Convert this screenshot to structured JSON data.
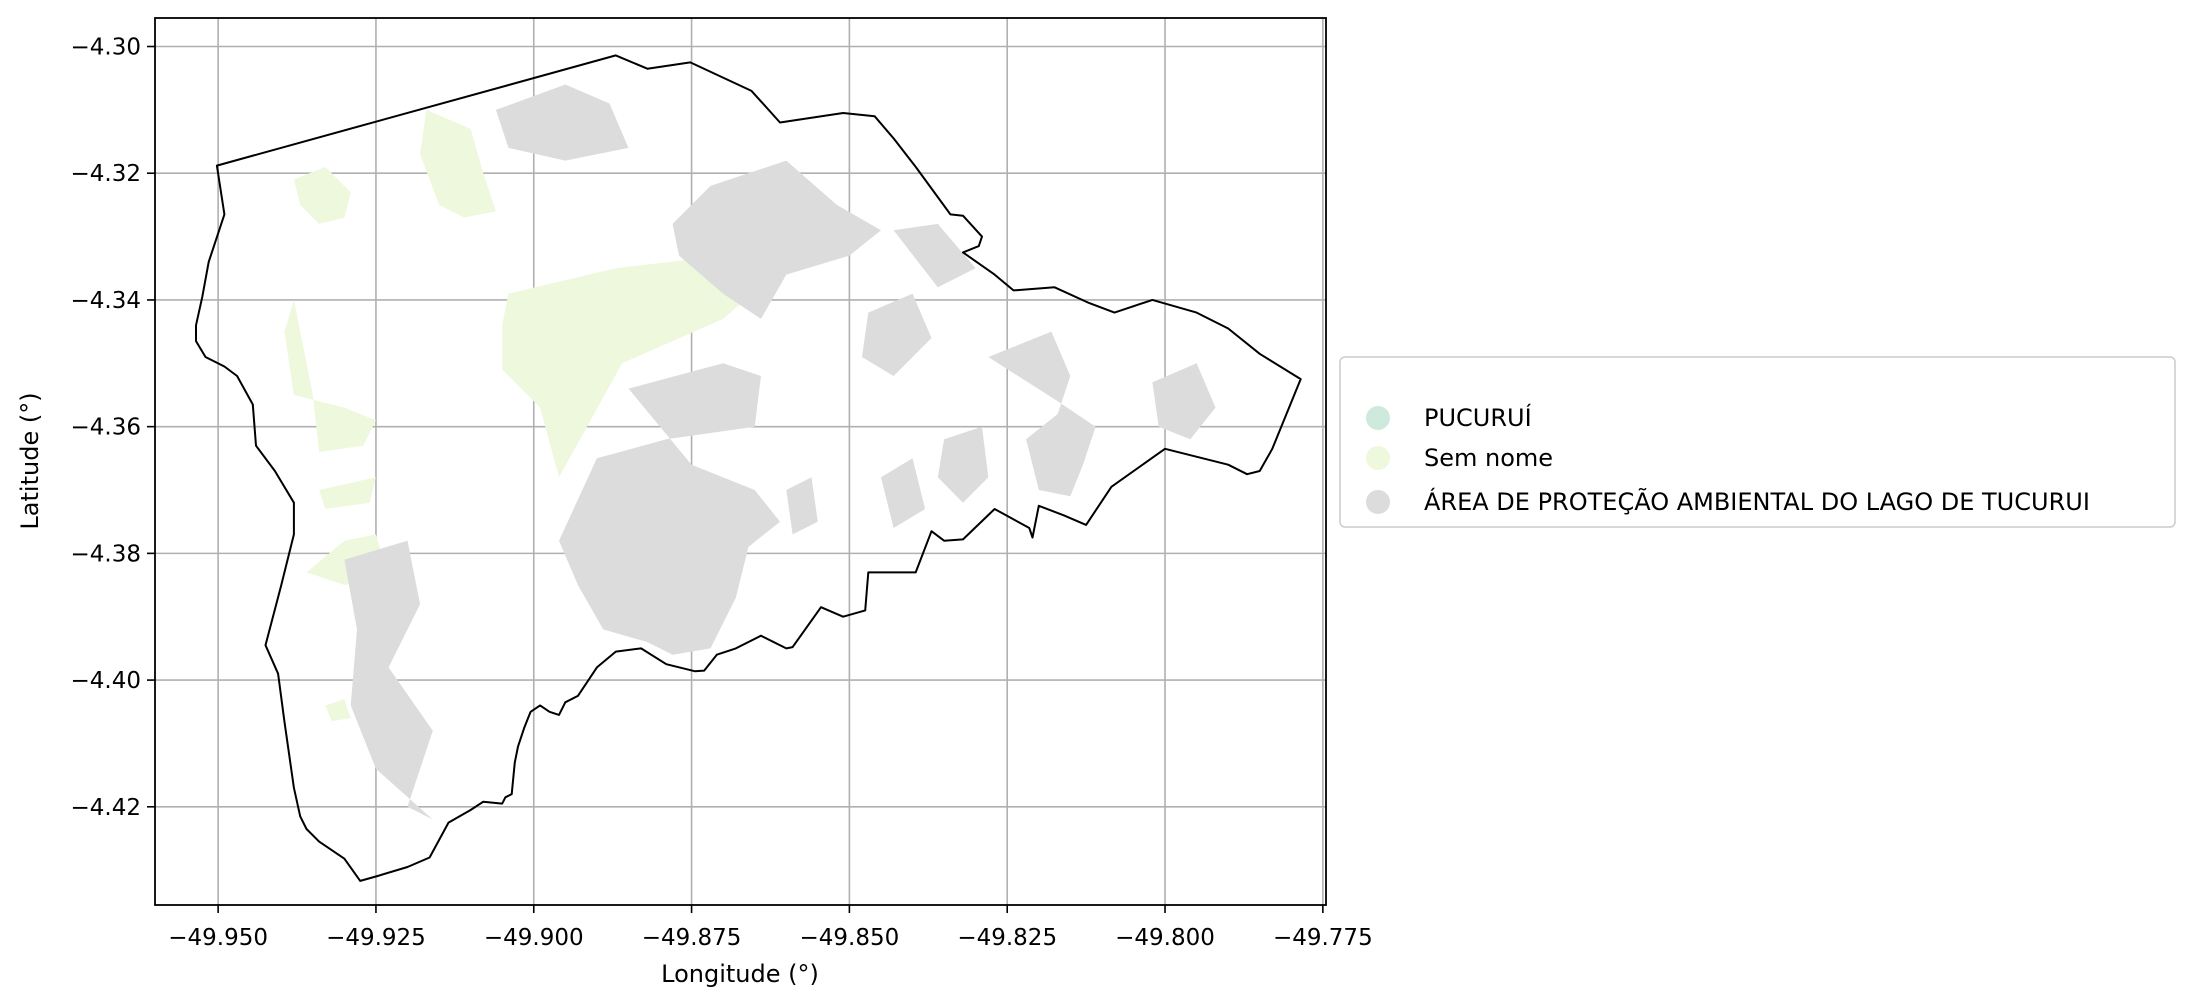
{
  "map": {
    "xlabel": "Longitude (°)",
    "ylabel": "Latitude (°)",
    "xlim": [
      -49.96,
      -49.7745
    ],
    "ylim": [
      -4.4355,
      -4.2955
    ],
    "x_ticks": [
      -49.95,
      -49.925,
      -49.9,
      -49.875,
      -49.85,
      -49.825,
      -49.8,
      -49.775
    ],
    "y_ticks": [
      -4.3,
      -4.32,
      -4.34,
      -4.36,
      -4.38,
      -4.4,
      -4.42
    ],
    "x_tick_labels": [
      "−49.950",
      "−49.925",
      "−49.900",
      "−49.875",
      "−49.850",
      "−49.825",
      "−49.800",
      "−49.775"
    ],
    "y_tick_labels": [
      "−4.30",
      "−4.32",
      "−4.34",
      "−4.36",
      "−4.38",
      "−4.40",
      "−4.42"
    ],
    "grid": true,
    "legend_position": "center-right outside",
    "colors": {
      "pucurui": "#cdeadd",
      "sem_nome": "#eef8dd",
      "apa": "#dcdcdc",
      "boundary": "#000000",
      "grid": "#b0b0b0"
    },
    "legend": [
      {
        "label": "PUCURUÍ",
        "color": "#cdeadd"
      },
      {
        "label": "Sem nome",
        "color": "#eef8dd"
      },
      {
        "label": "ÁREA DE PROTEÇÃO AMBIENTAL DO LAGO DE TUCURUI",
        "color": "#dcdcdc"
      }
    ],
    "boundary": [
      [
        -49.9502,
        -4.3188
      ],
      [
        -49.887,
        -4.3014
      ],
      [
        -49.882,
        -4.3035
      ],
      [
        -49.8752,
        -4.3025
      ],
      [
        -49.8655,
        -4.307
      ],
      [
        -49.861,
        -4.312
      ],
      [
        -49.851,
        -4.3105
      ],
      [
        -49.846,
        -4.311
      ],
      [
        -49.843,
        -4.3145
      ],
      [
        -49.8395,
        -4.319
      ],
      [
        -49.834,
        -4.3265
      ],
      [
        -49.832,
        -4.3267
      ],
      [
        -49.829,
        -4.33
      ],
      [
        -49.8295,
        -4.3315
      ],
      [
        -49.832,
        -4.3325
      ],
      [
        -49.827,
        -4.336
      ],
      [
        -49.824,
        -4.3385
      ],
      [
        -49.8175,
        -4.338
      ],
      [
        -49.812,
        -4.3405
      ],
      [
        -49.808,
        -4.342
      ],
      [
        -49.802,
        -4.34
      ],
      [
        -49.795,
        -4.342
      ],
      [
        -49.79,
        -4.3445
      ],
      [
        -49.785,
        -4.3485
      ],
      [
        -49.7785,
        -4.3525
      ],
      [
        -49.783,
        -4.3635
      ],
      [
        -49.785,
        -4.367
      ],
      [
        -49.787,
        -4.3675
      ],
      [
        -49.79,
        -4.366
      ],
      [
        -49.8,
        -4.3635
      ],
      [
        -49.8085,
        -4.3695
      ],
      [
        -49.8125,
        -4.3755
      ],
      [
        -49.816,
        -4.374
      ],
      [
        -49.82,
        -4.3725
      ],
      [
        -49.821,
        -4.3775
      ],
      [
        -49.8215,
        -4.376
      ],
      [
        -49.827,
        -4.373
      ],
      [
        -49.832,
        -4.3778
      ],
      [
        -49.835,
        -4.378
      ],
      [
        -49.837,
        -4.3765
      ],
      [
        -49.8395,
        -4.383
      ],
      [
        -49.847,
        -4.383
      ],
      [
        -49.8475,
        -4.389
      ],
      [
        -49.851,
        -4.39
      ],
      [
        -49.8545,
        -4.3885
      ],
      [
        -49.859,
        -4.3948
      ],
      [
        -49.86,
        -4.395
      ],
      [
        -49.864,
        -4.393
      ],
      [
        -49.868,
        -4.395
      ],
      [
        -49.871,
        -4.396
      ],
      [
        -49.873,
        -4.3985
      ],
      [
        -49.8745,
        -4.3986
      ],
      [
        -49.879,
        -4.3975
      ],
      [
        -49.883,
        -4.395
      ],
      [
        -49.887,
        -4.3955
      ],
      [
        -49.89,
        -4.398
      ],
      [
        -49.893,
        -4.4025
      ],
      [
        -49.895,
        -4.4035
      ],
      [
        -49.896,
        -4.4055
      ],
      [
        -49.8975,
        -4.405
      ],
      [
        -49.899,
        -4.404
      ],
      [
        -49.9005,
        -4.405
      ],
      [
        -49.9015,
        -4.4075
      ],
      [
        -49.9025,
        -4.4105
      ],
      [
        -49.903,
        -4.413
      ],
      [
        -49.9035,
        -4.418
      ],
      [
        -49.9045,
        -4.4185
      ],
      [
        -49.905,
        -4.4195
      ],
      [
        -49.908,
        -4.4192
      ],
      [
        -49.91,
        -4.4205
      ],
      [
        -49.9135,
        -4.4225
      ],
      [
        -49.9165,
        -4.428
      ],
      [
        -49.92,
        -4.4295
      ],
      [
        -49.925,
        -4.431
      ],
      [
        -49.9275,
        -4.4317
      ],
      [
        -49.93,
        -4.4282
      ],
      [
        -49.934,
        -4.4255
      ],
      [
        -49.936,
        -4.4235
      ],
      [
        -49.937,
        -4.4215
      ],
      [
        -49.938,
        -4.417
      ],
      [
        -49.9395,
        -4.4065
      ],
      [
        -49.9405,
        -4.399
      ],
      [
        -49.9425,
        -4.3945
      ],
      [
        -49.94,
        -4.385
      ],
      [
        -49.938,
        -4.377
      ],
      [
        -49.938,
        -4.372
      ],
      [
        -49.941,
        -4.367
      ],
      [
        -49.944,
        -4.363
      ],
      [
        -49.9445,
        -4.3565
      ],
      [
        -49.947,
        -4.352
      ],
      [
        -49.949,
        -4.3505
      ],
      [
        -49.952,
        -4.349
      ],
      [
        -49.9535,
        -4.3465
      ],
      [
        -49.9535,
        -4.344
      ],
      [
        -49.9525,
        -4.3395
      ],
      [
        -49.9515,
        -4.334
      ],
      [
        -49.949,
        -4.3265
      ],
      [
        -49.9502,
        -4.3188
      ]
    ],
    "sem_nome_areas": [
      [
        [
          -49.917,
          -4.31
        ],
        [
          -49.91,
          -4.313
        ],
        [
          -49.908,
          -4.32
        ],
        [
          -49.906,
          -4.326
        ],
        [
          -49.911,
          -4.327
        ],
        [
          -49.915,
          -4.325
        ],
        [
          -49.918,
          -4.317
        ]
      ],
      [
        [
          -49.938,
          -4.321
        ],
        [
          -49.933,
          -4.319
        ],
        [
          -49.929,
          -4.323
        ],
        [
          -49.93,
          -4.327
        ],
        [
          -49.934,
          -4.328
        ],
        [
          -49.937,
          -4.325
        ]
      ],
      [
        [
          -49.904,
          -4.339
        ],
        [
          -49.887,
          -4.335
        ],
        [
          -49.87,
          -4.333
        ],
        [
          -49.863,
          -4.337
        ],
        [
          -49.87,
          -4.343
        ],
        [
          -49.886,
          -4.35
        ],
        [
          -49.896,
          -4.368
        ],
        [
          -49.899,
          -4.357
        ],
        [
          -49.905,
          -4.351
        ],
        [
          -49.905,
          -4.344
        ]
      ],
      [
        [
          -49.938,
          -4.34
        ],
        [
          -49.935,
          -4.355
        ],
        [
          -49.934,
          -4.364
        ],
        [
          -49.927,
          -4.363
        ],
        [
          -49.925,
          -4.359
        ],
        [
          -49.93,
          -4.357
        ],
        [
          -49.938,
          -4.355
        ],
        [
          -49.9395,
          -4.345
        ]
      ],
      [
        [
          -49.934,
          -4.37
        ],
        [
          -49.925,
          -4.368
        ],
        [
          -49.926,
          -4.372
        ],
        [
          -49.933,
          -4.373
        ]
      ],
      [
        [
          -49.936,
          -4.383
        ],
        [
          -49.93,
          -4.378
        ],
        [
          -49.925,
          -4.377
        ],
        [
          -49.923,
          -4.384
        ],
        [
          -49.93,
          -4.385
        ]
      ],
      [
        [
          -49.933,
          -4.404
        ],
        [
          -49.93,
          -4.403
        ],
        [
          -49.929,
          -4.406
        ],
        [
          -49.932,
          -4.4065
        ]
      ]
    ],
    "apa_areas": [
      [
        [
          -49.906,
          -4.31
        ],
        [
          -49.895,
          -4.306
        ],
        [
          -49.888,
          -4.309
        ],
        [
          -49.885,
          -4.316
        ],
        [
          -49.895,
          -4.318
        ],
        [
          -49.904,
          -4.316
        ]
      ],
      [
        [
          -49.872,
          -4.322
        ],
        [
          -49.86,
          -4.318
        ],
        [
          -49.852,
          -4.325
        ],
        [
          -49.845,
          -4.329
        ],
        [
          -49.85,
          -4.333
        ],
        [
          -49.86,
          -4.336
        ],
        [
          -49.864,
          -4.343
        ],
        [
          -49.87,
          -4.339
        ],
        [
          -49.877,
          -4.333
        ],
        [
          -49.878,
          -4.328
        ]
      ],
      [
        [
          -49.87,
          -4.35
        ],
        [
          -49.864,
          -4.352
        ],
        [
          -49.865,
          -4.36
        ],
        [
          -49.879,
          -4.362
        ],
        [
          -49.89,
          -4.365
        ],
        [
          -49.896,
          -4.378
        ],
        [
          -49.893,
          -4.385
        ],
        [
          -49.889,
          -4.392
        ],
        [
          -49.882,
          -4.394
        ],
        [
          -49.878,
          -4.396
        ],
        [
          -49.872,
          -4.395
        ],
        [
          -49.868,
          -4.387
        ],
        [
          -49.866,
          -4.379
        ],
        [
          -49.861,
          -4.375
        ],
        [
          -49.865,
          -4.37
        ],
        [
          -49.875,
          -4.366
        ],
        [
          -49.885,
          -4.354
        ]
      ],
      [
        [
          -49.847,
          -4.342
        ],
        [
          -49.84,
          -4.339
        ],
        [
          -49.837,
          -4.346
        ],
        [
          -49.843,
          -4.352
        ],
        [
          -49.848,
          -4.349
        ]
      ],
      [
        [
          -49.828,
          -4.349
        ],
        [
          -49.818,
          -4.345
        ],
        [
          -49.815,
          -4.352
        ],
        [
          -49.817,
          -4.358
        ],
        [
          -49.822,
          -4.362
        ],
        [
          -49.82,
          -4.37
        ],
        [
          -49.815,
          -4.371
        ],
        [
          -49.813,
          -4.366
        ],
        [
          -49.811,
          -4.36
        ],
        [
          -49.817,
          -4.356
        ]
      ],
      [
        [
          -49.802,
          -4.353
        ],
        [
          -49.795,
          -4.35
        ],
        [
          -49.792,
          -4.357
        ],
        [
          -49.796,
          -4.362
        ],
        [
          -49.801,
          -4.36
        ]
      ],
      [
        [
          -49.835,
          -4.362
        ],
        [
          -49.829,
          -4.36
        ],
        [
          -49.828,
          -4.368
        ],
        [
          -49.832,
          -4.372
        ],
        [
          -49.836,
          -4.368
        ]
      ],
      [
        [
          -49.845,
          -4.368
        ],
        [
          -49.84,
          -4.365
        ],
        [
          -49.838,
          -4.373
        ],
        [
          -49.843,
          -4.376
        ]
      ],
      [
        [
          -49.86,
          -4.37
        ],
        [
          -49.856,
          -4.368
        ],
        [
          -49.855,
          -4.375
        ],
        [
          -49.859,
          -4.377
        ]
      ],
      [
        [
          -49.93,
          -4.381
        ],
        [
          -49.92,
          -4.378
        ],
        [
          -49.918,
          -4.388
        ],
        [
          -49.923,
          -4.398
        ],
        [
          -49.916,
          -4.408
        ],
        [
          -49.92,
          -4.42
        ],
        [
          -49.916,
          -4.422
        ],
        [
          -49.925,
          -4.414
        ],
        [
          -49.929,
          -4.404
        ],
        [
          -49.928,
          -4.392
        ]
      ],
      [
        [
          -49.843,
          -4.329
        ],
        [
          -49.836,
          -4.328
        ],
        [
          -49.83,
          -4.335
        ],
        [
          -49.836,
          -4.338
        ]
      ]
    ]
  }
}
